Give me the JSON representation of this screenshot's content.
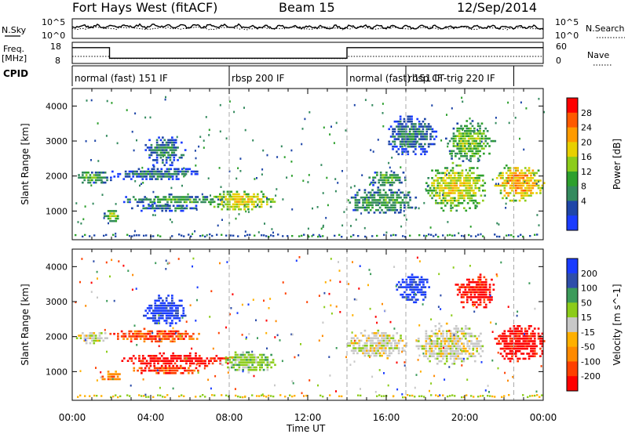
{
  "header": {
    "station": "Fort Hays West (fitACF)",
    "beam": "Beam 15",
    "date": "12/Sep/2014"
  },
  "top_panels": {
    "nsky_label": "N.Sky",
    "nsky_ticks": [
      "10^5",
      "10^0"
    ],
    "nsearch_label": "N.Search",
    "nsearch_ticks": [
      "10^5",
      "10^0"
    ],
    "freq_label": "Freq.",
    "freq_unit": "[MHz]",
    "freq_ticks": [
      "18",
      "8"
    ],
    "nave_label": "Nave",
    "nave_ticks": [
      "60",
      "0"
    ],
    "cpid_label": "CPID",
    "cpid_segments": [
      {
        "label": "normal (fast) 151 IF",
        "start_h": 0,
        "end_h": 8
      },
      {
        "label": "rbsp 200 IF",
        "start_h": 8,
        "end_h": 14
      },
      {
        "label": "normal (fast) 151 IF",
        "start_h": 14,
        "end_h": 17
      },
      {
        "label": "rbsp CT-trig 220 IF",
        "start_h": 17,
        "end_h": 22.5
      }
    ],
    "freq_series": [
      {
        "start_h": 0,
        "end_h": 1.9,
        "value_mhz": 15.5
      },
      {
        "start_h": 1.9,
        "end_h": 14.0,
        "value_mhz": 10.5
      },
      {
        "start_h": 14.0,
        "end_h": 24,
        "value_mhz": 15.5
      }
    ],
    "nave_series": [
      {
        "start_h": 0,
        "end_h": 1.9,
        "value": 20
      },
      {
        "start_h": 1.9,
        "end_h": 14.0,
        "value": 14
      },
      {
        "start_h": 14.0,
        "end_h": 24,
        "value": 20
      }
    ]
  },
  "chart_data": [
    {
      "type": "heatmap",
      "name": "power",
      "ylabel": "Slant Range [km]",
      "xlabel": "",
      "ylim": [
        180,
        4500
      ],
      "xlim_hours": [
        0,
        24
      ],
      "colorbar_label": "Power [dB]",
      "colorbar_ticks": [
        "28",
        "24",
        "20",
        "16",
        "12",
        "8",
        "4"
      ],
      "colorbar_colors": [
        "#ff0000",
        "#ff5a00",
        "#ff9b00",
        "#e8d000",
        "#8ccc1a",
        "#2da02d",
        "#348a5e",
        "#1e46a8",
        "#1a3cff"
      ],
      "y_ticks": [
        "4000",
        "3000",
        "2000",
        "1000"
      ],
      "echo_regions": [
        {
          "t0": 0.0,
          "t1": 2.0,
          "r0": 1800,
          "r1": 2200,
          "level": 3
        },
        {
          "t0": 1.6,
          "t1": 2.4,
          "r0": 700,
          "r1": 1100,
          "level": 4
        },
        {
          "t0": 2.0,
          "t1": 6.4,
          "r0": 1900,
          "r1": 2300,
          "level": 2
        },
        {
          "t0": 2.5,
          "t1": 8.2,
          "r0": 1200,
          "r1": 1500,
          "level": 3
        },
        {
          "t0": 3.0,
          "t1": 6.5,
          "r0": 1000,
          "r1": 1250,
          "level": 2
        },
        {
          "t0": 7.0,
          "t1": 10.3,
          "r0": 1000,
          "r1": 1650,
          "level": 5
        },
        {
          "t0": 3.6,
          "t1": 5.8,
          "r0": 2300,
          "r1": 3200,
          "level": 2
        },
        {
          "t0": 14.0,
          "t1": 17.5,
          "r0": 900,
          "r1": 1700,
          "level": 3
        },
        {
          "t0": 15.0,
          "t1": 17.0,
          "r0": 1700,
          "r1": 2200,
          "level": 3
        },
        {
          "t0": 16.0,
          "t1": 18.5,
          "r0": 2600,
          "r1": 3800,
          "level": 2
        },
        {
          "t0": 18.0,
          "t1": 21.0,
          "r0": 1000,
          "r1": 2400,
          "level": 5
        },
        {
          "t0": 19.0,
          "t1": 21.5,
          "r0": 2400,
          "r1": 3600,
          "level": 4
        },
        {
          "t0": 21.5,
          "t1": 24.0,
          "r0": 1300,
          "r1": 2400,
          "level": 6
        }
      ]
    },
    {
      "type": "heatmap",
      "name": "velocity",
      "ylabel": "Slant Range [km]",
      "xlabel": "Time UT",
      "ylim": [
        180,
        4500
      ],
      "xlim_hours": [
        0,
        24
      ],
      "colorbar_label": "Velocity [m s^-1]",
      "colorbar_ticks": [
        "200",
        "100",
        "50",
        "15",
        "-15",
        "-50",
        "-100",
        "-200"
      ],
      "colorbar_colors": [
        "#1a3cff",
        "#2e4eaa",
        "#3c9b5a",
        "#8ccc1a",
        "#c8c8c8",
        "#ffb000",
        "#ff8a00",
        "#ff4000",
        "#ff0000"
      ],
      "y_ticks": [
        "4000",
        "3000",
        "2000",
        "1000"
      ],
      "x_ticks": [
        "00:00",
        "04:00",
        "08:00",
        "12:00",
        "16:00",
        "20:00",
        "00:00"
      ],
      "echo_regions": [
        {
          "t0": 0.0,
          "t1": 1.8,
          "r0": 1800,
          "r1": 2200,
          "level": 4
        },
        {
          "t0": 1.5,
          "t1": 2.4,
          "r0": 700,
          "r1": 1100,
          "level": 6
        },
        {
          "t0": 1.8,
          "t1": 6.5,
          "r0": 1850,
          "r1": 2250,
          "level": 7
        },
        {
          "t0": 2.5,
          "t1": 8.0,
          "r0": 1150,
          "r1": 1550,
          "level": 8
        },
        {
          "t0": 3.0,
          "t1": 6.5,
          "r0": 950,
          "r1": 1200,
          "level": 7
        },
        {
          "t0": 7.5,
          "t1": 10.3,
          "r0": 1000,
          "r1": 1650,
          "level": 3
        },
        {
          "t0": 3.6,
          "t1": 5.8,
          "r0": 2300,
          "r1": 3200,
          "level": 0
        },
        {
          "t0": 14.0,
          "t1": 17.0,
          "r0": 1400,
          "r1": 2200,
          "level": 4
        },
        {
          "t0": 16.5,
          "t1": 18.2,
          "r0": 3000,
          "r1": 3800,
          "level": 0
        },
        {
          "t0": 17.5,
          "t1": 21.0,
          "r0": 1200,
          "r1": 2400,
          "level": 4
        },
        {
          "t0": 19.5,
          "t1": 21.5,
          "r0": 2800,
          "r1": 3800,
          "level": 8
        },
        {
          "t0": 21.5,
          "t1": 24.0,
          "r0": 1300,
          "r1": 2400,
          "level": 8
        }
      ]
    }
  ]
}
